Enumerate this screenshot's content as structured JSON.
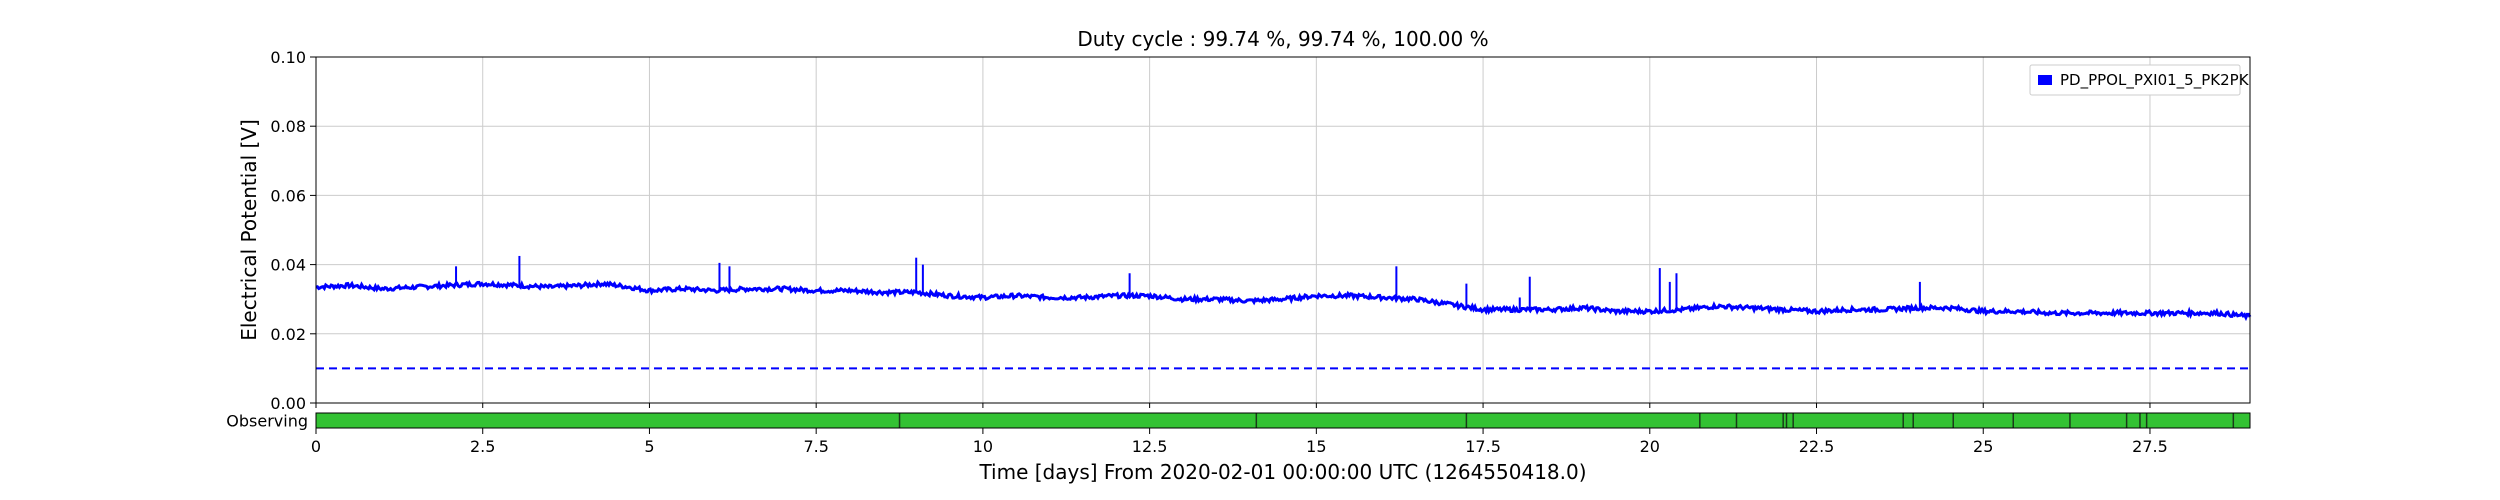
{
  "chart_data": {
    "type": "line",
    "title": "Duty cycle : 99.74 %, 99.74 %, 100.00 %",
    "xlabel": "Time [days] From 2020-02-01 00:00:00 UTC (1264550418.0)",
    "ylabel": "Electrical Potential [V]",
    "xlim": [
      0,
      29
    ],
    "ylim": [
      0,
      0.1
    ],
    "x_ticks": [
      0,
      2.5,
      5,
      7.5,
      10,
      12.5,
      15,
      17.5,
      20,
      22.5,
      25,
      27.5
    ],
    "x_tick_labels": [
      "0",
      "2.5",
      "5",
      "7.5",
      "10",
      "12.5",
      "15",
      "17.5",
      "20",
      "22.5",
      "25",
      "27.5"
    ],
    "y_ticks": [
      0,
      0.02,
      0.04,
      0.06,
      0.08,
      0.1
    ],
    "y_tick_labels": [
      "0.00",
      "0.02",
      "0.04",
      "0.06",
      "0.08",
      "0.10"
    ],
    "grid": true,
    "legend_position": "top-right",
    "colors": {
      "series": "#0000ff",
      "threshold": "#0000ff",
      "observing": "#33c233",
      "gap": "#1a3a1a",
      "grid": "#cccccc"
    },
    "series": [
      {
        "name": "PD_PPOL_PXI01_5_PK2PK",
        "style": "solid",
        "x": [
          0,
          0.5,
          1,
          1.5,
          2,
          2.5,
          3,
          3.5,
          4,
          4.3,
          4.7,
          5,
          5.5,
          6,
          6.5,
          7,
          7.5,
          8,
          8.5,
          9,
          9.5,
          10,
          10.5,
          11,
          11.5,
          12,
          12.5,
          13,
          13.5,
          14,
          14.5,
          15,
          15.5,
          16,
          16.5,
          17,
          17.5,
          18,
          18.5,
          19,
          19.5,
          20,
          20.5,
          21,
          21.5,
          22,
          22.5,
          23,
          23.5,
          24,
          24.5,
          25,
          25.5,
          26,
          26.5,
          27,
          27.5,
          28,
          28.5,
          29
        ],
        "y": [
          0.0335,
          0.034,
          0.033,
          0.0335,
          0.034,
          0.0345,
          0.034,
          0.0335,
          0.034,
          0.0345,
          0.0335,
          0.0325,
          0.033,
          0.0325,
          0.033,
          0.033,
          0.0325,
          0.0325,
          0.032,
          0.032,
          0.031,
          0.0305,
          0.031,
          0.0305,
          0.0305,
          0.031,
          0.031,
          0.03,
          0.03,
          0.0295,
          0.03,
          0.031,
          0.031,
          0.0305,
          0.03,
          0.0285,
          0.027,
          0.027,
          0.027,
          0.0275,
          0.0265,
          0.0265,
          0.027,
          0.028,
          0.0275,
          0.027,
          0.0265,
          0.027,
          0.027,
          0.0275,
          0.0275,
          0.0265,
          0.0265,
          0.026,
          0.026,
          0.026,
          0.026,
          0.026,
          0.026,
          0.025
        ]
      },
      {
        "style": "dashed",
        "x": [
          0,
          29
        ],
        "y": [
          0.01,
          0.01
        ]
      }
    ],
    "spikes": [
      {
        "x": 2.1,
        "y": 0.0395
      },
      {
        "x": 3.05,
        "y": 0.0425
      },
      {
        "x": 6.05,
        "y": 0.0405
      },
      {
        "x": 6.2,
        "y": 0.0395
      },
      {
        "x": 9.0,
        "y": 0.042
      },
      {
        "x": 9.1,
        "y": 0.04
      },
      {
        "x": 12.2,
        "y": 0.0375
      },
      {
        "x": 16.2,
        "y": 0.0395
      },
      {
        "x": 17.25,
        "y": 0.0345
      },
      {
        "x": 18.05,
        "y": 0.0305
      },
      {
        "x": 18.2,
        "y": 0.0365
      },
      {
        "x": 20.15,
        "y": 0.039
      },
      {
        "x": 20.3,
        "y": 0.035
      },
      {
        "x": 20.4,
        "y": 0.0375
      },
      {
        "x": 24.05,
        "y": 0.035
      }
    ],
    "observing": {
      "label": "Observing",
      "range": [
        0,
        29
      ],
      "gaps": [
        8.75,
        14.1,
        17.25,
        20.75,
        21.3,
        22.0,
        22.05,
        22.15,
        23.8,
        23.95,
        24.55,
        25.45,
        26.3,
        27.15,
        27.35,
        27.45,
        28.75
      ]
    }
  }
}
